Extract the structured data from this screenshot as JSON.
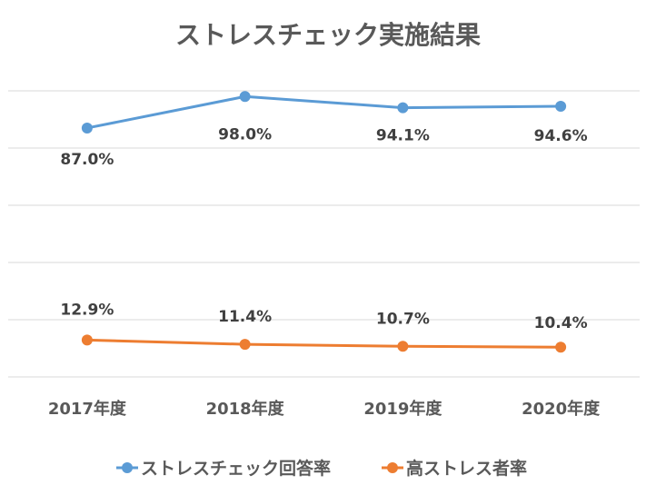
{
  "chart_data": {
    "type": "line",
    "title": "ストレスチェック実施結果",
    "categories": [
      "2017年度",
      "2018年度",
      "2019年度",
      "2020年度"
    ],
    "ylim": [
      0,
      100
    ],
    "grid": true,
    "legend_position": "bottom",
    "series": [
      {
        "name": "ストレスチェック回答率",
        "color": "#5B9BD5",
        "values": [
          87.0,
          98.0,
          94.1,
          94.6
        ],
        "labels": [
          "87.0%",
          "98.0%",
          "94.1%",
          "94.6%"
        ]
      },
      {
        "name": "高ストレス者率",
        "color": "#ED7D31",
        "values": [
          12.9,
          11.4,
          10.7,
          10.4
        ],
        "labels": [
          "12.9%",
          "11.4%",
          "10.7%",
          "10.4%"
        ]
      }
    ]
  }
}
